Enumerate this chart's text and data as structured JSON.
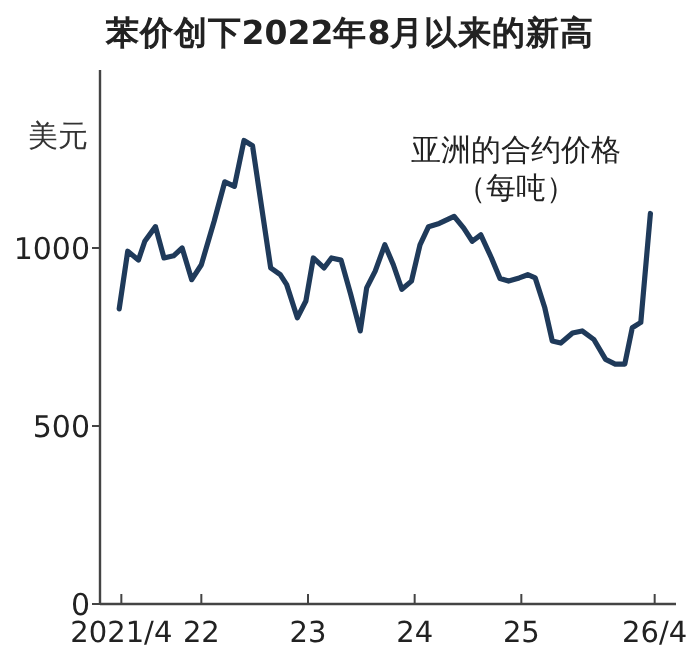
{
  "chart_data": {
    "type": "line",
    "title": "苯价创下2022年8月以来的新高",
    "ylabel": "美元",
    "annotations": [
      "亚洲的合约价格",
      "（每吨）"
    ],
    "x": [
      2021.23,
      2021.31,
      2021.41,
      2021.47,
      2021.57,
      2021.65,
      2021.74,
      2021.82,
      2021.91,
      2022.0,
      2022.12,
      2022.22,
      2022.31,
      2022.4,
      2022.48,
      2022.65,
      2022.74,
      2022.8,
      2022.9,
      2022.98,
      2023.05,
      2023.15,
      2023.22,
      2023.31,
      2023.4,
      2023.49,
      2023.55,
      2023.63,
      2023.72,
      2023.8,
      2023.88,
      2023.97,
      2024.05,
      2024.13,
      2024.23,
      2024.37,
      2024.46,
      2024.54,
      2024.62,
      2024.72,
      2024.8,
      2024.88,
      2024.98,
      2025.06,
      2025.13,
      2025.22,
      2025.29,
      2025.37,
      2025.48,
      2025.57,
      2025.68,
      2025.79,
      2025.88,
      2025.97,
      2026.04,
      2026.12,
      2026.21
    ],
    "series": [
      {
        "color": "#1f3a5a",
        "values": [
          829,
          991,
          966,
          1019,
          1060,
          972,
          978,
          1000,
          911,
          953,
          1075,
          1186,
          1173,
          1302,
          1287,
          944,
          925,
          897,
          804,
          851,
          972,
          944,
          972,
          966,
          870,
          767,
          888,
          935,
          1009,
          953,
          884,
          907,
          1009,
          1060,
          1069,
          1089,
          1056,
          1019,
          1037,
          972,
          914,
          907,
          916,
          925,
          916,
          832,
          739,
          733,
          761,
          767,
          743,
          687,
          674,
          674,
          776,
          791,
          1097
        ]
      }
    ],
    "xlim": [
      2021.05,
      2026.45
    ],
    "xticks": [
      {
        "value": 2021.25,
        "label": "2021/4"
      },
      {
        "value": 2022,
        "label": "22"
      },
      {
        "value": 2023,
        "label": "23"
      },
      {
        "value": 2024,
        "label": "24"
      },
      {
        "value": 2025,
        "label": "25"
      },
      {
        "value": 2026.25,
        "label": "26/4"
      }
    ],
    "ylim": [
      0,
      1500
    ],
    "yticks": [
      0,
      500,
      1000
    ],
    "grid": false,
    "marker": "none",
    "line_style": "solid"
  }
}
